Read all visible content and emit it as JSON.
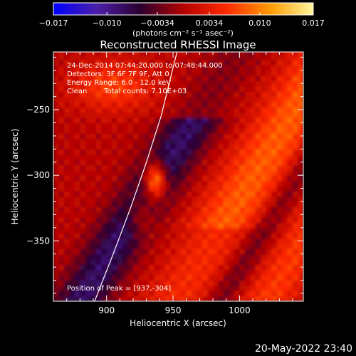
{
  "chart_data": {
    "type": "heatmap",
    "title": "Reconstructed RHESSI Image",
    "xlabel": "Heliocentric X (arcsec)",
    "ylabel": "Heliocentric Y (arcsec)",
    "xlim": [
      860,
      1048
    ],
    "ylim": [
      -396,
      -206
    ],
    "x_ticks": [
      900,
      950,
      1000
    ],
    "x_tick_labels": [
      "900",
      "950",
      "1000"
    ],
    "y_ticks": [
      -250,
      -300,
      -350
    ],
    "y_tick_labels": [
      "−250",
      "−300",
      "−350"
    ],
    "colorbar": {
      "min": -0.017,
      "max": 0.017,
      "ticks": [
        -0.017,
        -0.01,
        -0.0034,
        0.0034,
        0.01,
        0.017
      ],
      "tick_labels": [
        "−0.017",
        "−0.010",
        "−0.0034",
        "0.0034",
        "0.010",
        "0.017"
      ],
      "label": "(photons cm⁻² s⁻¹ asec⁻²)",
      "colors": [
        "#0000ff",
        "#4b1fa8",
        "#2a0030",
        "#b30000",
        "#ff2a00",
        "#ff9a00",
        "#fff6a0"
      ]
    },
    "annotations": {
      "time_range": "24-Dec-2014 07:44:20.000 to 07:48:44.000",
      "detectors": "Detectors: 3F 6F 7F 9F, Att 0",
      "energy_range": "Energy Range: 6.0 - 12.0 keV",
      "clean_label": "Clean",
      "total_counts": "Total counts: 7.10E+03",
      "peak_position": "Position of Peak = [937,-304]"
    },
    "peak": {
      "x": 937,
      "y": -304
    },
    "limb_curve": [
      [
        891,
        -396
      ],
      [
        905,
        -360
      ],
      [
        918,
        -325
      ],
      [
        930,
        -290
      ],
      [
        941,
        -255
      ],
      [
        950,
        -218
      ],
      [
        953,
        -206
      ]
    ],
    "grid": false
  },
  "footer": {
    "timestamp": "20-May-2022 23:40"
  }
}
